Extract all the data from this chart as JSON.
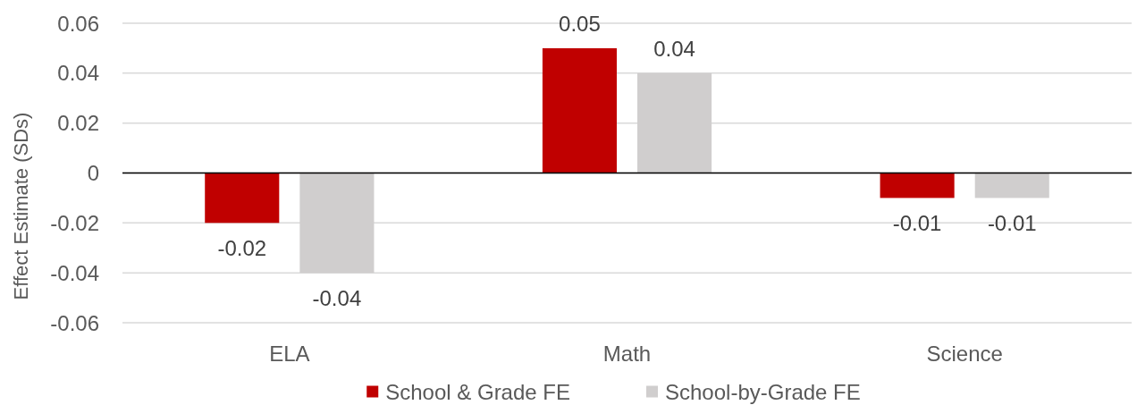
{
  "chart_data": {
    "type": "bar",
    "ylabel": "Effect Estimate (SDs)",
    "categories": [
      "ELA",
      "Math",
      "Science"
    ],
    "series": [
      {
        "name": "School & Grade FE",
        "color": "#c00000",
        "values": [
          -0.02,
          0.05,
          -0.01
        ]
      },
      {
        "name": "School-by-Grade FE",
        "color": "#d0cece",
        "values": [
          -0.04,
          0.04,
          -0.01
        ]
      }
    ],
    "ylim": [
      -0.06,
      0.06
    ],
    "yticks": [
      -0.06,
      -0.04,
      -0.02,
      0,
      0.02,
      0.04,
      0.06
    ],
    "grid": "y",
    "legend": "bottom",
    "data_labels": true
  }
}
